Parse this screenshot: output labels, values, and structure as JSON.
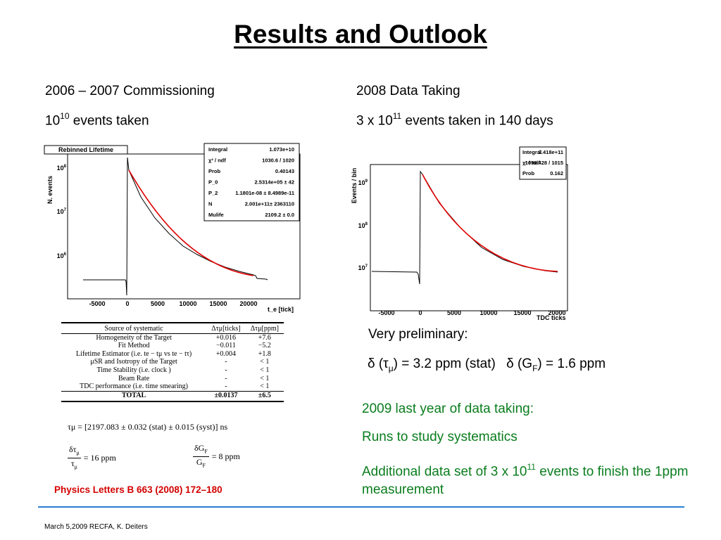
{
  "title": "Results and Outlook",
  "left": {
    "heading": "2006 – 2007 Commissioning",
    "events_base": "10",
    "events_exp": "10",
    "events_suffix": " events taken",
    "plot": {
      "title": "Rebinned Lifetime",
      "ylabel": "N. events",
      "xlabel": "t_e [tick]",
      "yticks": [
        {
          "b": "10",
          "e": "8"
        },
        {
          "b": "10",
          "e": "7"
        },
        {
          "b": "10",
          "e": "6"
        }
      ],
      "xticks": [
        "-5000",
        "0",
        "5000",
        "10000",
        "15000",
        "20000"
      ],
      "stats": [
        {
          "k": "Integral",
          "v": "1.073e+10"
        },
        {
          "k": "χ² / ndf",
          "v": "1030.6 / 1020"
        },
        {
          "k": "Prob",
          "v": "0.40143"
        },
        {
          "k": "P_0",
          "v": "2.5314e+05 ± 42"
        },
        {
          "k": "P_2",
          "v": "1.1801e-08 ± 8.4989e-11"
        },
        {
          "k": "N",
          "v": "2.001e+11± 2363110"
        },
        {
          "k": "Mulife",
          "v": "2109.2 ± 0.0"
        }
      ]
    },
    "table": {
      "header": [
        "Source of systematic",
        "Δτμ[ticks]",
        "Δτμ[ppm]"
      ],
      "rows": [
        [
          "Homogeneity of the Target",
          "+0.016",
          "+7.6"
        ],
        [
          "Fit Method",
          "−0.011",
          "−5.2"
        ],
        [
          "Lifetime Estimator (i.e. te − tμ vs te − tτ)",
          "+0.004",
          "+1.8"
        ],
        [
          "μSR  and Isotropy of the Target",
          "-",
          "< 1"
        ],
        [
          "Time Stability (i.e. clock )",
          "-",
          "< 1"
        ],
        [
          "Beam Rate",
          "-",
          "< 1"
        ],
        [
          "TDC performance (i.e. time smearing)",
          "-",
          "< 1"
        ]
      ],
      "total": [
        "TOTAL",
        "±0.0137",
        "±6.5"
      ]
    },
    "formula_tau": "τμ = [2197.083 ± 0.032 (stat) ± 0.015 (syst)] ns",
    "formula_dtau": "= 16  ppm",
    "formula_dgf": "= 8  ppm",
    "reference": "Physics Letters B 663 (2008) 172–180"
  },
  "right": {
    "heading": "2008 Data Taking",
    "events_prefix": "3 x 10",
    "events_exp": "11",
    "events_suffix": " events taken in 140 days",
    "plot": {
      "ylabel": "Events / bin",
      "xlabel": "TDC ticks",
      "yticks": [
        {
          "b": "10",
          "e": "9"
        },
        {
          "b": "10",
          "e": "8"
        },
        {
          "b": "10",
          "e": "7"
        }
      ],
      "xticks": [
        "-5000",
        "0",
        "5000",
        "10000",
        "15000",
        "20000"
      ],
      "stats": [
        {
          "k": "Integral",
          "v": "2.418e+11"
        },
        {
          "k": "χ² / ndf",
          "v": "1059.428 / 1015"
        },
        {
          "k": "Prob",
          "v": "0.162"
        }
      ]
    },
    "prelim_label": "Very preliminary:",
    "result_tau": "δ (τμ) = 3.2 ppm (stat)",
    "result_gf": "δ (GF) = 1.6 ppm",
    "outlook": [
      "2009 last year of data taking:",
      "Runs to study systematics"
    ],
    "outlook3_prefix": "Additional data set of 3 x 10",
    "outlook3_exp": "11",
    "outlook3_suffix": " events to finish the 1ppm measurement"
  },
  "footer": "March 5,2009 RECFA, K. Deiters",
  "colors": {
    "fit": "#e00000",
    "green": "#0a7d1e",
    "rule": "#2a7fd4",
    "reference": "#d40000"
  }
}
